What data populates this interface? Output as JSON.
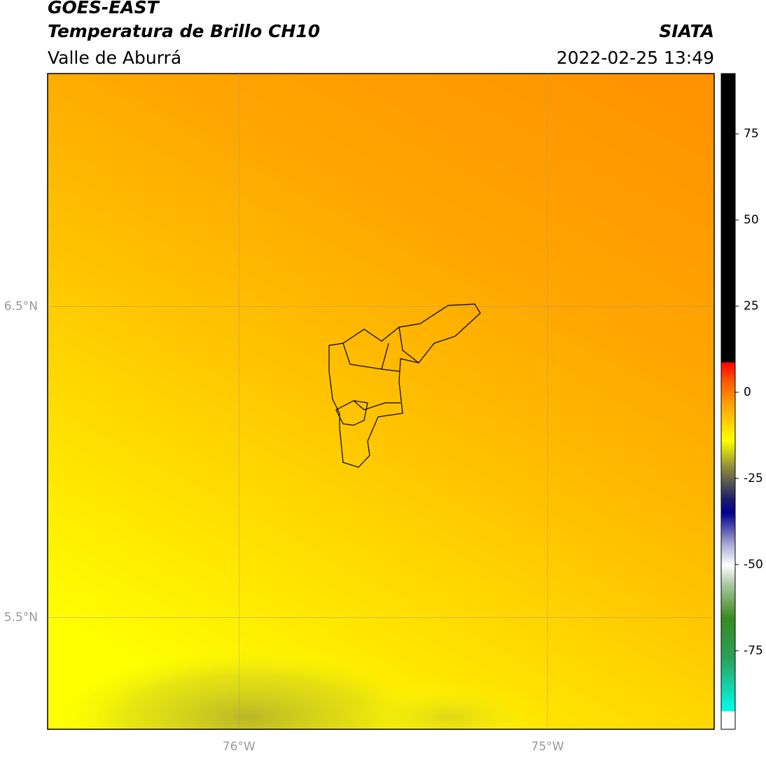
{
  "header": {
    "title": "GOES-EAST",
    "subtitle": "Temperatura de Brillo CH10",
    "region": "Valle de Aburrá",
    "source": "SIATA",
    "datetime": "2022-02-25 13:49"
  },
  "map": {
    "xlim": [
      -76.62,
      -74.46
    ],
    "ylim": [
      5.14,
      7.25
    ],
    "xticks": [
      {
        "value": -76,
        "label": "76°W"
      },
      {
        "value": -75,
        "label": "75°W"
      }
    ],
    "yticks": [
      {
        "value": 6.5,
        "label": "6.5°N"
      },
      {
        "value": 5.5,
        "label": "5.5°N"
      }
    ],
    "grid": true
  },
  "colorbar": {
    "clim": [
      -97.8,
      92.5
    ],
    "ticks": [
      75,
      50,
      25,
      0,
      -25,
      -50,
      -75
    ]
  }
}
